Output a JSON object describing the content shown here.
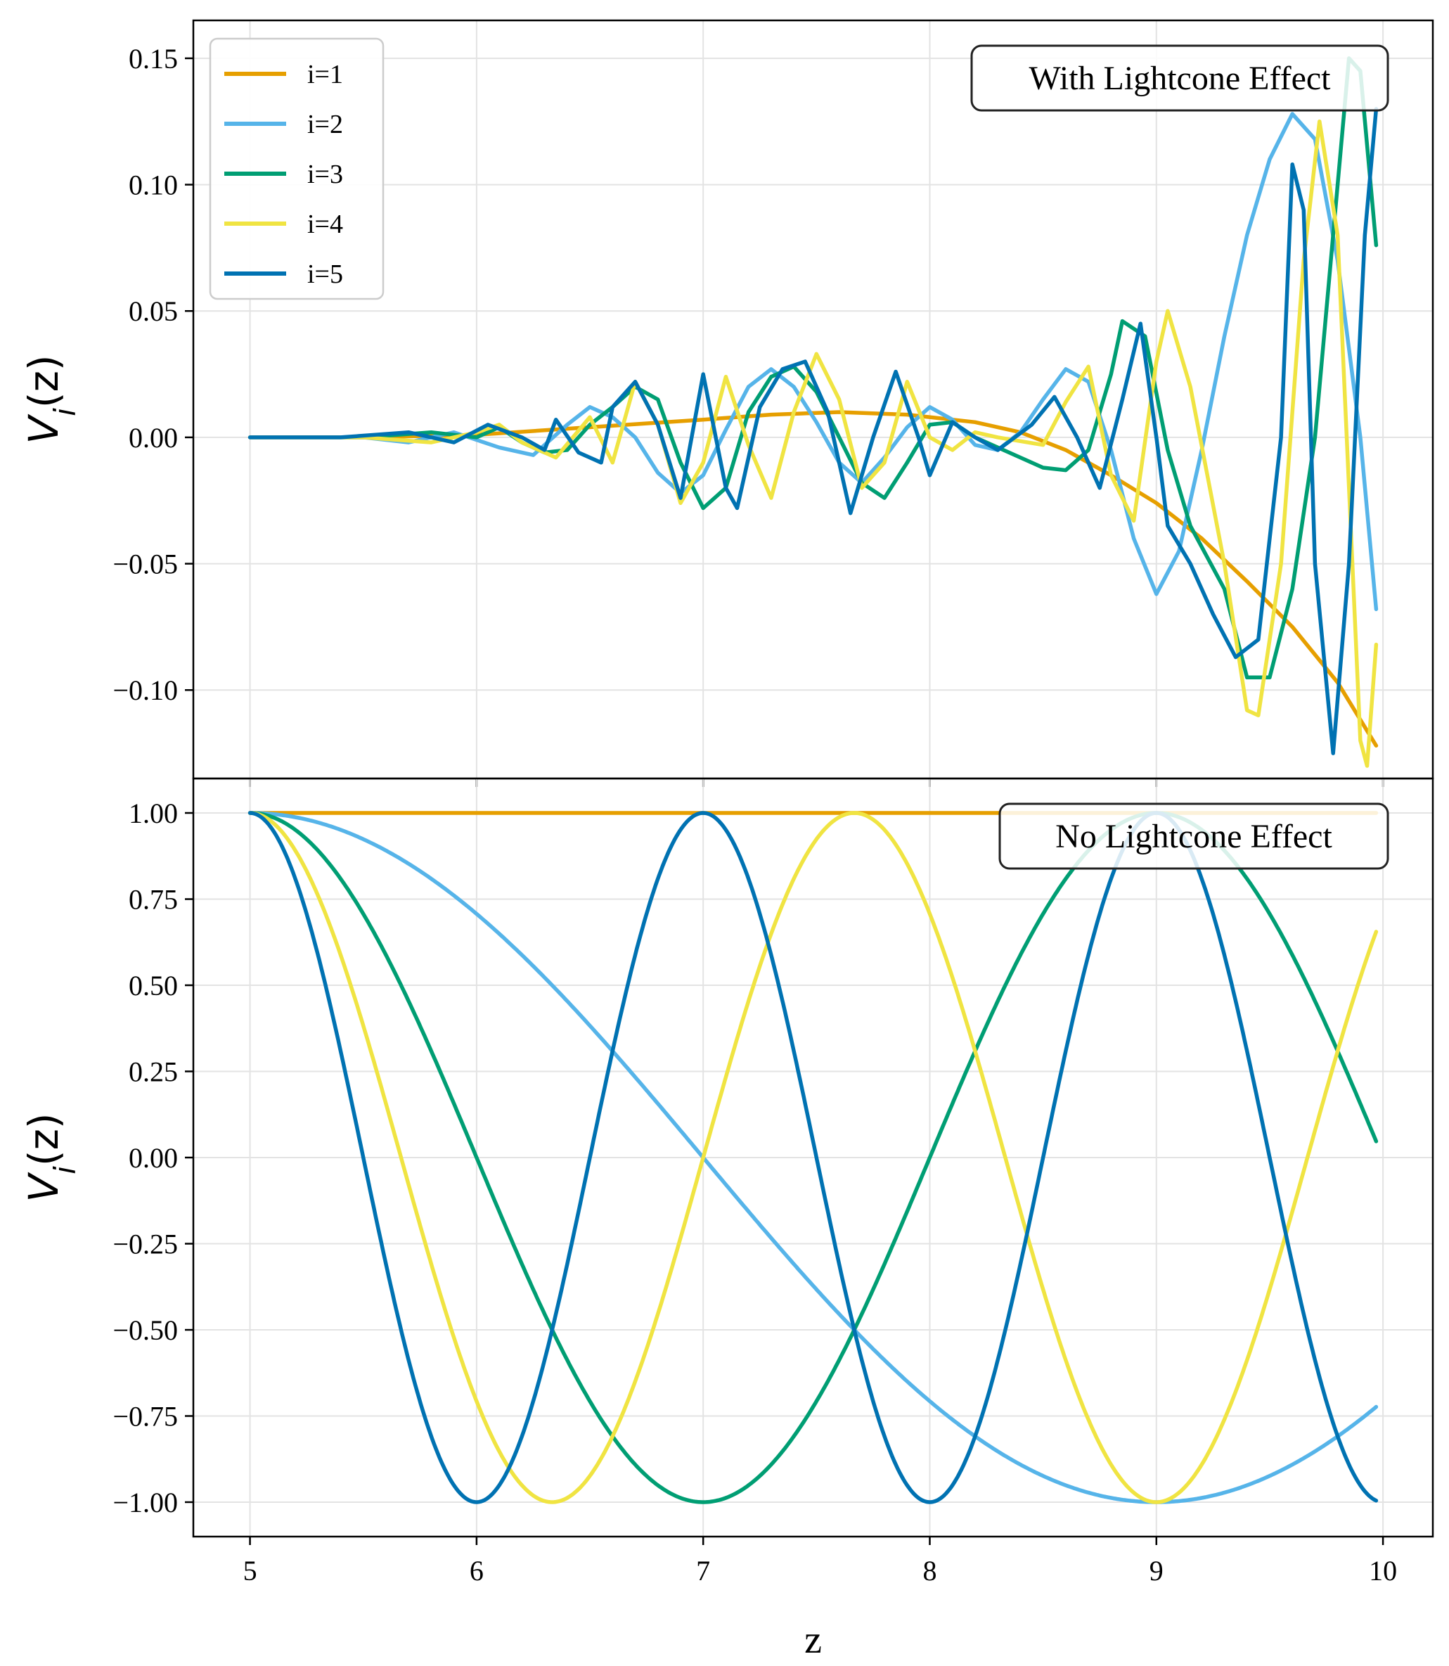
{
  "chart_data": [
    {
      "type": "line",
      "panel": "top",
      "annotation": "With Lightcone Effect",
      "ylabel": "V_i(z)",
      "ylim": [
        -0.135,
        0.165
      ],
      "xlim": [
        4.75,
        10.22
      ],
      "grid": true,
      "legend_position": "top-left",
      "xticks": [
        5,
        6,
        7,
        8,
        9,
        10
      ],
      "yticks": [
        {
          "v": 0.15,
          "label": "0.15"
        },
        {
          "v": 0.1,
          "label": "0.10"
        },
        {
          "v": 0.05,
          "label": "0.05"
        },
        {
          "v": 0.0,
          "label": "0.00"
        },
        {
          "v": -0.05,
          "label": "−0.05"
        },
        {
          "v": -0.1,
          "label": "−0.10"
        }
      ],
      "series": [
        {
          "name": "i=1",
          "color": "#E69F00",
          "points": [
            [
              5.0,
              0.0
            ],
            [
              5.5,
              0.0
            ],
            [
              6.0,
              0.001
            ],
            [
              6.5,
              0.004
            ],
            [
              7.0,
              0.007
            ],
            [
              7.3,
              0.009
            ],
            [
              7.6,
              0.01
            ],
            [
              7.9,
              0.009
            ],
            [
              8.2,
              0.006
            ],
            [
              8.4,
              0.002
            ],
            [
              8.6,
              -0.005
            ],
            [
              8.8,
              -0.015
            ],
            [
              9.0,
              -0.026
            ],
            [
              9.2,
              -0.04
            ],
            [
              9.4,
              -0.057
            ],
            [
              9.6,
              -0.075
            ],
            [
              9.8,
              -0.097
            ],
            [
              9.97,
              -0.122
            ]
          ]
        },
        {
          "name": "i=2",
          "color": "#56B4E9",
          "points": [
            [
              5.0,
              0.0
            ],
            [
              5.5,
              0.0
            ],
            [
              5.7,
              -0.002
            ],
            [
              5.9,
              0.002
            ],
            [
              6.1,
              -0.004
            ],
            [
              6.25,
              -0.007
            ],
            [
              6.4,
              0.005
            ],
            [
              6.5,
              0.012
            ],
            [
              6.6,
              0.008
            ],
            [
              6.7,
              0.0
            ],
            [
              6.8,
              -0.014
            ],
            [
              6.9,
              -0.022
            ],
            [
              7.0,
              -0.015
            ],
            [
              7.1,
              0.003
            ],
            [
              7.2,
              0.02
            ],
            [
              7.3,
              0.027
            ],
            [
              7.4,
              0.02
            ],
            [
              7.5,
              0.006
            ],
            [
              7.6,
              -0.01
            ],
            [
              7.7,
              -0.018
            ],
            [
              7.8,
              -0.008
            ],
            [
              7.9,
              0.004
            ],
            [
              8.0,
              0.012
            ],
            [
              8.1,
              0.007
            ],
            [
              8.2,
              -0.003
            ],
            [
              8.3,
              -0.005
            ],
            [
              8.4,
              0.002
            ],
            [
              8.5,
              0.015
            ],
            [
              8.6,
              0.027
            ],
            [
              8.7,
              0.022
            ],
            [
              8.8,
              -0.005
            ],
            [
              8.9,
              -0.04
            ],
            [
              9.0,
              -0.062
            ],
            [
              9.1,
              -0.045
            ],
            [
              9.2,
              -0.005
            ],
            [
              9.3,
              0.04
            ],
            [
              9.4,
              0.08
            ],
            [
              9.5,
              0.11
            ],
            [
              9.6,
              0.128
            ],
            [
              9.7,
              0.118
            ],
            [
              9.8,
              0.07
            ],
            [
              9.9,
              0.0
            ],
            [
              9.97,
              -0.068
            ]
          ]
        },
        {
          "name": "i=3",
          "color": "#009E73",
          "points": [
            [
              5.0,
              0.0
            ],
            [
              5.5,
              0.0
            ],
            [
              5.8,
              0.002
            ],
            [
              6.0,
              0.0
            ],
            [
              6.1,
              0.004
            ],
            [
              6.2,
              -0.002
            ],
            [
              6.3,
              -0.006
            ],
            [
              6.4,
              -0.005
            ],
            [
              6.5,
              0.005
            ],
            [
              6.6,
              0.012
            ],
            [
              6.7,
              0.02
            ],
            [
              6.8,
              0.015
            ],
            [
              6.9,
              -0.01
            ],
            [
              7.0,
              -0.028
            ],
            [
              7.1,
              -0.02
            ],
            [
              7.2,
              0.01
            ],
            [
              7.3,
              0.024
            ],
            [
              7.4,
              0.028
            ],
            [
              7.5,
              0.018
            ],
            [
              7.6,
              0.0
            ],
            [
              7.7,
              -0.018
            ],
            [
              7.8,
              -0.024
            ],
            [
              7.9,
              -0.01
            ],
            [
              8.0,
              0.005
            ],
            [
              8.1,
              0.006
            ],
            [
              8.2,
              0.0
            ],
            [
              8.3,
              -0.004
            ],
            [
              8.5,
              -0.012
            ],
            [
              8.6,
              -0.013
            ],
            [
              8.7,
              -0.005
            ],
            [
              8.8,
              0.025
            ],
            [
              8.85,
              0.046
            ],
            [
              8.95,
              0.04
            ],
            [
              9.05,
              -0.005
            ],
            [
              9.15,
              -0.035
            ],
            [
              9.3,
              -0.06
            ],
            [
              9.4,
              -0.095
            ],
            [
              9.5,
              -0.095
            ],
            [
              9.6,
              -0.06
            ],
            [
              9.7,
              0.0
            ],
            [
              9.8,
              0.1
            ],
            [
              9.85,
              0.15
            ],
            [
              9.9,
              0.145
            ],
            [
              9.97,
              0.076
            ]
          ]
        },
        {
          "name": "i=4",
          "color": "#F0E442",
          "points": [
            [
              5.0,
              0.0
            ],
            [
              5.5,
              0.0
            ],
            [
              5.8,
              -0.002
            ],
            [
              6.0,
              0.002
            ],
            [
              6.1,
              0.005
            ],
            [
              6.2,
              -0.002
            ],
            [
              6.35,
              -0.008
            ],
            [
              6.5,
              0.008
            ],
            [
              6.6,
              -0.01
            ],
            [
              6.7,
              0.022
            ],
            [
              6.8,
              0.005
            ],
            [
              6.9,
              -0.026
            ],
            [
              7.0,
              -0.01
            ],
            [
              7.1,
              0.024
            ],
            [
              7.2,
              -0.003
            ],
            [
              7.3,
              -0.024
            ],
            [
              7.4,
              0.01
            ],
            [
              7.5,
              0.033
            ],
            [
              7.6,
              0.015
            ],
            [
              7.7,
              -0.02
            ],
            [
              7.8,
              -0.01
            ],
            [
              7.9,
              0.022
            ],
            [
              8.0,
              0.0
            ],
            [
              8.1,
              -0.005
            ],
            [
              8.2,
              0.002
            ],
            [
              8.3,
              0.0
            ],
            [
              8.5,
              -0.003
            ],
            [
              8.6,
              0.014
            ],
            [
              8.7,
              0.028
            ],
            [
              8.8,
              -0.015
            ],
            [
              8.9,
              -0.033
            ],
            [
              9.0,
              0.03
            ],
            [
              9.05,
              0.05
            ],
            [
              9.15,
              0.02
            ],
            [
              9.3,
              -0.05
            ],
            [
              9.4,
              -0.108
            ],
            [
              9.45,
              -0.11
            ],
            [
              9.55,
              -0.05
            ],
            [
              9.65,
              0.07
            ],
            [
              9.72,
              0.125
            ],
            [
              9.8,
              0.08
            ],
            [
              9.9,
              -0.12
            ],
            [
              9.93,
              -0.13
            ],
            [
              9.97,
              -0.082
            ]
          ]
        },
        {
          "name": "i=5",
          "color": "#0072B2",
          "points": [
            [
              5.0,
              0.0
            ],
            [
              5.4,
              0.0
            ],
            [
              5.7,
              0.002
            ],
            [
              5.9,
              -0.002
            ],
            [
              6.05,
              0.005
            ],
            [
              6.2,
              0.0
            ],
            [
              6.3,
              -0.005
            ],
            [
              6.35,
              0.007
            ],
            [
              6.45,
              -0.006
            ],
            [
              6.55,
              -0.01
            ],
            [
              6.6,
              0.012
            ],
            [
              6.7,
              0.022
            ],
            [
              6.8,
              0.005
            ],
            [
              6.9,
              -0.024
            ],
            [
              7.0,
              0.025
            ],
            [
              7.1,
              -0.02
            ],
            [
              7.15,
              -0.028
            ],
            [
              7.25,
              0.012
            ],
            [
              7.35,
              0.027
            ],
            [
              7.45,
              0.03
            ],
            [
              7.55,
              0.01
            ],
            [
              7.65,
              -0.03
            ],
            [
              7.75,
              0.0
            ],
            [
              7.85,
              0.026
            ],
            [
              7.95,
              0.0
            ],
            [
              8.0,
              -0.015
            ],
            [
              8.1,
              0.006
            ],
            [
              8.2,
              0.0
            ],
            [
              8.3,
              -0.005
            ],
            [
              8.45,
              0.005
            ],
            [
              8.55,
              0.016
            ],
            [
              8.65,
              0.0
            ],
            [
              8.75,
              -0.02
            ],
            [
              8.85,
              0.015
            ],
            [
              8.93,
              0.045
            ],
            [
              9.0,
              0.0
            ],
            [
              9.05,
              -0.035
            ],
            [
              9.15,
              -0.05
            ],
            [
              9.25,
              -0.07
            ],
            [
              9.35,
              -0.087
            ],
            [
              9.45,
              -0.08
            ],
            [
              9.55,
              0.0
            ],
            [
              9.6,
              0.108
            ],
            [
              9.65,
              0.09
            ],
            [
              9.7,
              -0.05
            ],
            [
              9.78,
              -0.125
            ],
            [
              9.85,
              -0.05
            ],
            [
              9.92,
              0.08
            ],
            [
              9.97,
              0.13
            ]
          ]
        }
      ]
    },
    {
      "type": "line",
      "panel": "bottom",
      "annotation": "No Lightcone Effect",
      "xlabel": "z",
      "ylabel": "V_i(z)",
      "ylim": [
        -1.1,
        1.1
      ],
      "xlim": [
        4.75,
        10.22
      ],
      "grid": true,
      "xticks": [
        5,
        6,
        7,
        8,
        9,
        10
      ],
      "yticks": [
        {
          "v": 1.0,
          "label": "1.00"
        },
        {
          "v": 0.75,
          "label": "0.75"
        },
        {
          "v": 0.5,
          "label": "0.50"
        },
        {
          "v": 0.25,
          "label": "0.25"
        },
        {
          "v": 0.0,
          "label": "0.00"
        },
        {
          "v": -0.25,
          "label": "−0.25"
        },
        {
          "v": -0.5,
          "label": "−0.50"
        },
        {
          "v": -0.75,
          "label": "−0.75"
        },
        {
          "v": -1.0,
          "label": "−1.00"
        }
      ],
      "series": [
        {
          "name": "i=1",
          "color": "#E69F00",
          "function": "cos(pi*(i-1)*(z-5)/4)",
          "i": 1,
          "zmin": 5.0,
          "zmax": 9.97
        },
        {
          "name": "i=2",
          "color": "#56B4E9",
          "function": "cos(pi*(i-1)*(z-5)/4)",
          "i": 2,
          "zmin": 5.0,
          "zmax": 9.97
        },
        {
          "name": "i=3",
          "color": "#009E73",
          "function": "cos(pi*(i-1)*(z-5)/4)",
          "i": 3,
          "zmin": 5.0,
          "zmax": 9.97
        },
        {
          "name": "i=4",
          "color": "#F0E442",
          "function": "cos(pi*(i-1)*(z-5)/4)",
          "i": 4,
          "zmin": 5.0,
          "zmax": 9.97
        },
        {
          "name": "i=5",
          "color": "#0072B2",
          "function": "cos(pi*(i-1)*(z-5)/4)",
          "i": 5,
          "zmin": 5.0,
          "zmax": 9.97
        }
      ]
    }
  ]
}
